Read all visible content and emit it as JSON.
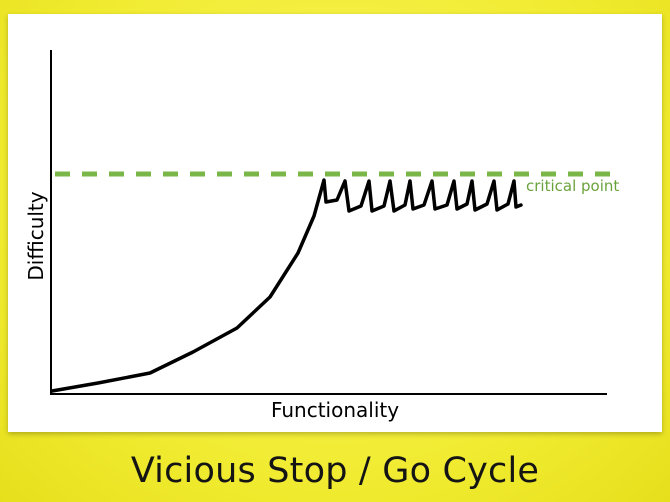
{
  "slide": {
    "title": "Vicious Stop / Go Cycle"
  },
  "diagram": {
    "y_axis_label": "Difficulty",
    "x_axis_label": "Functionality",
    "threshold_label": "critical point",
    "colors": {
      "background": "#f0ea2e",
      "curve": "#000000",
      "threshold": "#7ab648",
      "threshold_text": "#6aa33c",
      "axes": "#000000"
    }
  }
}
